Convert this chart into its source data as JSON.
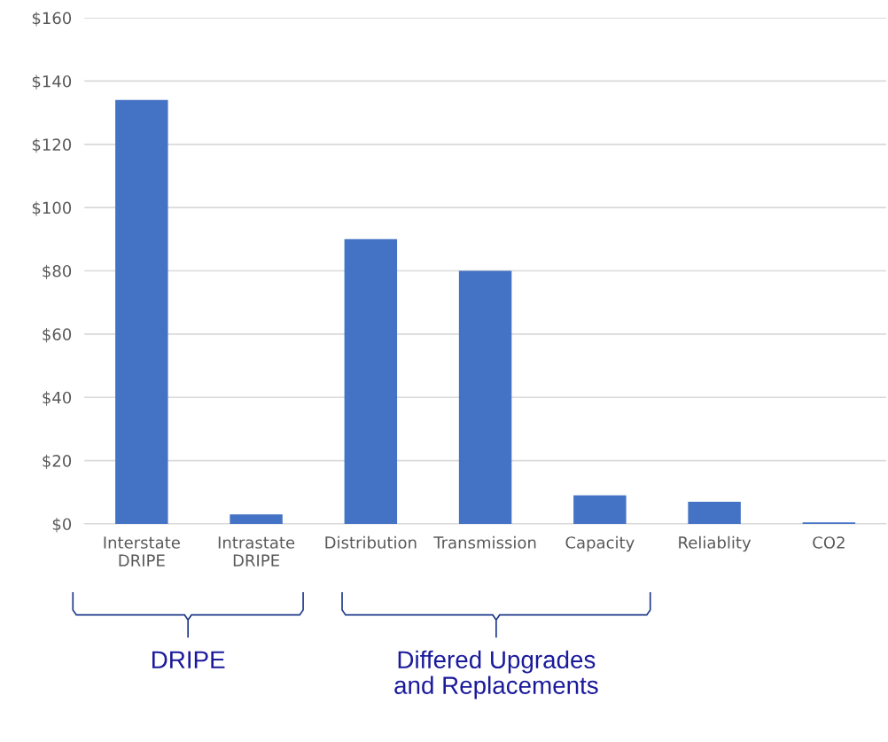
{
  "chart_data": {
    "type": "bar",
    "categories": [
      "Interstate\nDRIPE",
      "Intrastate\nDRIPE",
      "Distribution",
      "Transmission",
      "Capacity",
      "Reliablity",
      "CO2"
    ],
    "values": [
      134,
      3,
      90,
      80,
      9,
      7,
      0.5
    ],
    "color": "#4472c4",
    "ylim": [
      0,
      160
    ],
    "yticks": [
      {
        "value": 0,
        "label": "$0"
      },
      {
        "value": 20,
        "label": "$20"
      },
      {
        "value": 40,
        "label": "$40"
      },
      {
        "value": 60,
        "label": "$60"
      },
      {
        "value": 80,
        "label": "$80"
      },
      {
        "value": 100,
        "label": "$100"
      },
      {
        "value": 120,
        "label": "$120"
      },
      {
        "value": 140,
        "label": "$140"
      },
      {
        "value": 160,
        "label": "$160"
      }
    ],
    "grid": "y",
    "legend": false,
    "annotations": [
      "DRIPE",
      "Differed Upgrades\nand Replacements"
    ]
  }
}
